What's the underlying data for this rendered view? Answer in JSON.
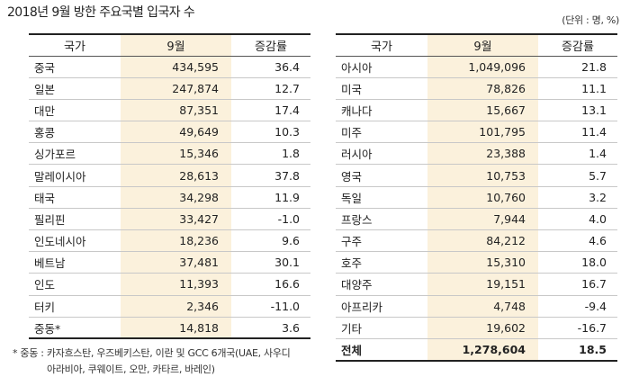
{
  "title": "2018년 9월 방한 주요국별 입국자 수",
  "unit": "(단위 : 명, %)",
  "headers": {
    "country": "국가",
    "month": "9월",
    "rate": "증감률"
  },
  "left_rows": [
    {
      "name": "중국",
      "value": "434,595",
      "rate": "36.4"
    },
    {
      "name": "일본",
      "value": "247,874",
      "rate": "12.7"
    },
    {
      "name": "대만",
      "value": "87,351",
      "rate": "17.4"
    },
    {
      "name": "홍콩",
      "value": "49,649",
      "rate": "10.3"
    },
    {
      "name": "싱가포르",
      "value": "15,346",
      "rate": "1.8"
    },
    {
      "name": "말레이시아",
      "value": "28,613",
      "rate": "37.8"
    },
    {
      "name": "태국",
      "value": "34,298",
      "rate": "11.9"
    },
    {
      "name": "필리핀",
      "value": "33,427",
      "rate": "-1.0"
    },
    {
      "name": "인도네시아",
      "value": "18,236",
      "rate": "9.6"
    },
    {
      "name": "베트남",
      "value": "37,481",
      "rate": "30.1"
    },
    {
      "name": "인도",
      "value": "11,393",
      "rate": "16.6"
    },
    {
      "name": "터키",
      "value": "2,346",
      "rate": "-11.0"
    },
    {
      "name": "중동*",
      "value": "14,818",
      "rate": "3.6"
    }
  ],
  "right_rows": [
    {
      "name": "아시아",
      "value": "1,049,096",
      "rate": "21.8"
    },
    {
      "name": "미국",
      "value": "78,826",
      "rate": "11.1"
    },
    {
      "name": "캐나다",
      "value": "15,667",
      "rate": "13.1"
    },
    {
      "name": "미주",
      "value": "101,795",
      "rate": "11.4"
    },
    {
      "name": "러시아",
      "value": "23,388",
      "rate": "1.4"
    },
    {
      "name": "영국",
      "value": "10,753",
      "rate": "5.7"
    },
    {
      "name": "독일",
      "value": "10,760",
      "rate": "3.2"
    },
    {
      "name": "프랑스",
      "value": "7,944",
      "rate": "4.0"
    },
    {
      "name": "구주",
      "value": "84,212",
      "rate": "4.6"
    },
    {
      "name": "호주",
      "value": "15,310",
      "rate": "18.0"
    },
    {
      "name": "대양주",
      "value": "19,151",
      "rate": "16.7"
    },
    {
      "name": "아프리카",
      "value": "4,748",
      "rate": "-9.4"
    },
    {
      "name": "기타",
      "value": "19,602",
      "rate": "-16.7"
    },
    {
      "name": "전체",
      "value": "1,278,604",
      "rate": "18.5"
    }
  ],
  "footnote": {
    "line1": "* 중동 : 카자흐스탄, 우즈베키스탄, 이란 및 GCC 6개국(UAE, 사우디",
    "line2": "아라비아, 쿠웨이트, 오만, 카타르, 바레인)"
  }
}
